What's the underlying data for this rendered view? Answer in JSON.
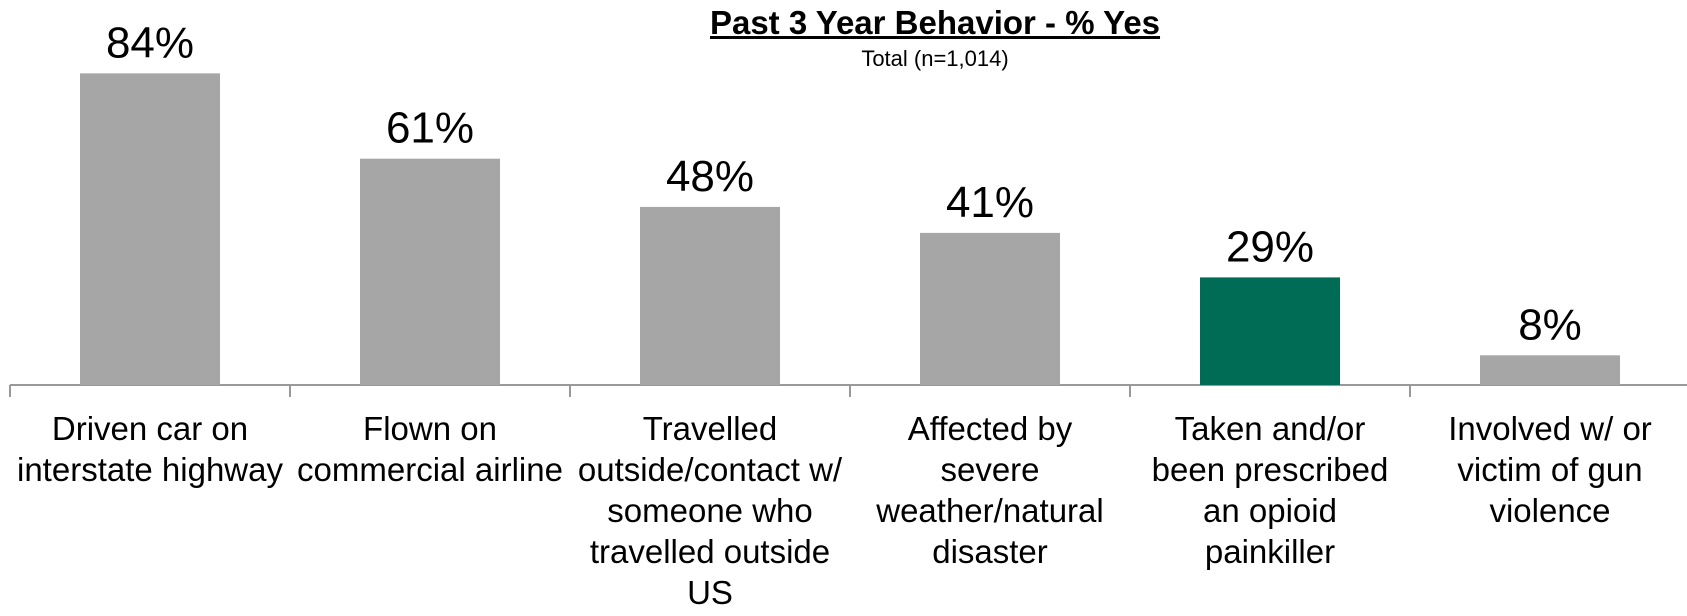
{
  "chart_data": {
    "type": "bar",
    "title": "Past 3 Year Behavior - % Yes",
    "subtitle": "Total (n=1,014)",
    "categories": [
      "Driven car on interstate highway",
      "Flown on commercial airline",
      "Travelled outside/contact w/ someone who travelled outside US",
      "Affected by severe weather/natural disaster",
      "Taken and/or been prescribed an opioid painkiller",
      "Involved w/ or victim of gun violence"
    ],
    "values": [
      84,
      61,
      48,
      41,
      29,
      8
    ],
    "value_labels": [
      "84%",
      "61%",
      "48%",
      "41%",
      "29%",
      "8%"
    ],
    "colors": [
      "#a6a6a6",
      "#a6a6a6",
      "#a6a6a6",
      "#a6a6a6",
      "#006c56",
      "#a6a6a6"
    ]
  }
}
